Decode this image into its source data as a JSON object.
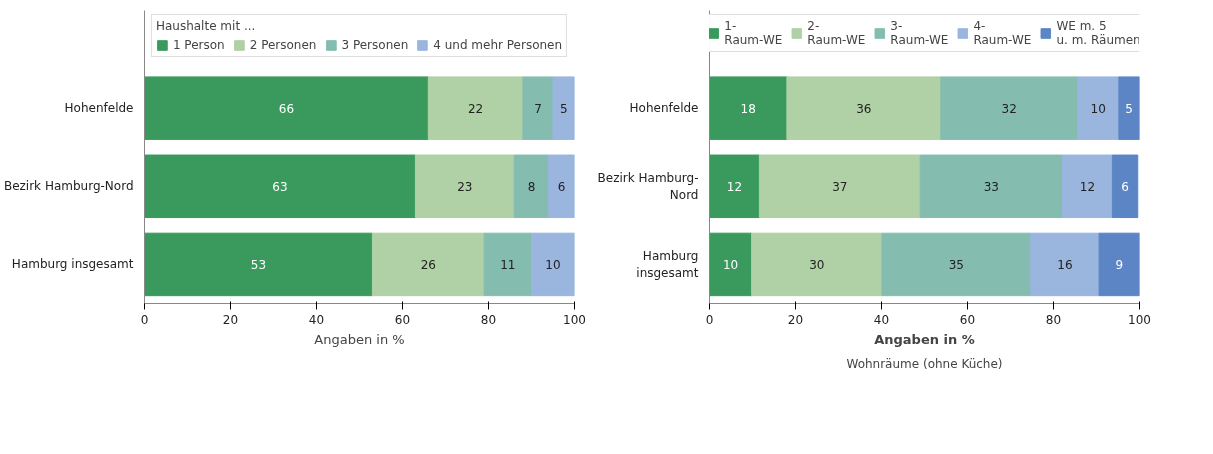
{
  "chart_data": [
    {
      "type": "bar",
      "orientation": "horizontal",
      "stacked": true,
      "categories": [
        "Hohenfelde",
        "Bezirk Hamburg-Nord",
        "Hamburg insgesamt"
      ],
      "legend_title": "Haushalte mit ...",
      "xlabel": "Angaben in %",
      "xlim": [
        0,
        100
      ],
      "xticks": [
        0,
        20,
        40,
        60,
        80,
        100
      ],
      "grid": false,
      "legend": "top",
      "data_labels": true,
      "series": [
        {
          "name": "1 Person",
          "color": "#3a9a5e",
          "values": [
            66,
            63,
            53
          ]
        },
        {
          "name": "2 Personen",
          "color": "#b0d0a5",
          "values": [
            22,
            23,
            26
          ]
        },
        {
          "name": "3 Personen",
          "color": "#84bdb0",
          "values": [
            7,
            8,
            11
          ]
        },
        {
          "name": "4 und mehr Personen",
          "color": "#9ab5de",
          "values": [
            5,
            6,
            10
          ]
        }
      ]
    },
    {
      "type": "bar",
      "orientation": "horizontal",
      "stacked": true,
      "categories": [
        "Hohenfelde",
        "Bezirk Hamburg-\nNord",
        "Hamburg\ninsgesamt"
      ],
      "xlabel": "Angaben in %",
      "xlim": [
        0,
        100
      ],
      "xticks": [
        0,
        20,
        40,
        60,
        80,
        100
      ],
      "grid": false,
      "legend": "top",
      "annotations": [
        "Wohnräume (ohne Küche)"
      ],
      "series": [
        {
          "name": "1-\nRaum-WE",
          "color": "#3a9a5e",
          "values": [
            18,
            11.6,
            9.8
          ],
          "value_labels": [
            "18",
            "12",
            "10"
          ]
        },
        {
          "name": "2-\nRaum-WE",
          "color": "#b0d0a5",
          "values": [
            35.8,
            37.4,
            30.3
          ],
          "value_labels": [
            "36",
            "37",
            "30"
          ]
        },
        {
          "name": "3-\nRaum-WE",
          "color": "#84bdb0",
          "values": [
            31.8,
            33.1,
            34.6
          ],
          "value_labels": [
            "32",
            "33",
            "35"
          ]
        },
        {
          "name": "4-\nRaum-WE",
          "color": "#9ab5de",
          "values": [
            9.6,
            11.6,
            15.9
          ],
          "value_labels": [
            "10",
            "12",
            "16"
          ]
        },
        {
          "name": "WE m. 5\nu. m. Räumen",
          "color": "#5b85c4",
          "values": [
            4.8,
            5.9,
            9.4
          ],
          "value_labels": [
            "5",
            "6",
            "9"
          ]
        }
      ]
    }
  ]
}
